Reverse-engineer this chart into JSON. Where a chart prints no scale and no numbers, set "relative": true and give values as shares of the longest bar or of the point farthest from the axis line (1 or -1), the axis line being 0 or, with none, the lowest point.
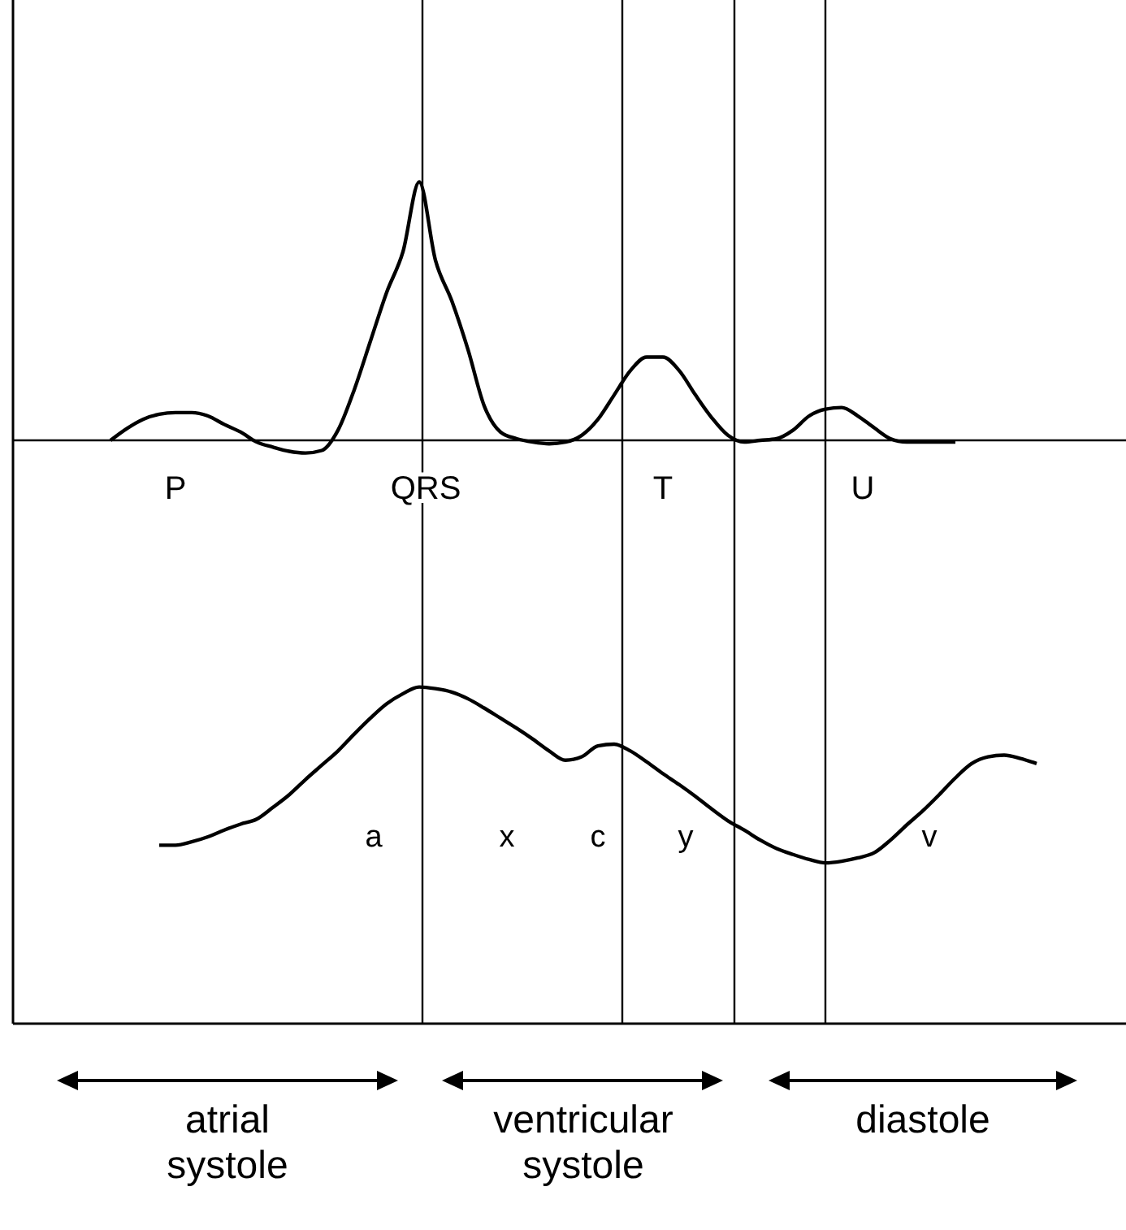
{
  "chart_data": {
    "type": "line",
    "relative": true,
    "marker": "none",
    "line_style": "solid",
    "categories": [
      null,
      null,
      null,
      null,
      null,
      null,
      null,
      null,
      null,
      null,
      null,
      null,
      null,
      null,
      null,
      null,
      null,
      null,
      null,
      null,
      null,
      null,
      null,
      null,
      null,
      null,
      null,
      null,
      null,
      null,
      null,
      null,
      null,
      null,
      null,
      null,
      null,
      null,
      null,
      null,
      null,
      null,
      null,
      null,
      null,
      null,
      null,
      null,
      null,
      null,
      null,
      null,
      null,
      null,
      null,
      null,
      null,
      null,
      null,
      null,
      null,
      null,
      null,
      null,
      null,
      null,
      null,
      null,
      null
    ],
    "series": [
      {
        "color": "#000000",
        "values": [
          null,
          null,
          null,
          null,
          null,
          null,
          0.693,
          0.707,
          0.718,
          0.724,
          0.726,
          0.726,
          0.722,
          0.712,
          0.703,
          0.691,
          0.685,
          0.68,
          0.678,
          0.681,
          0.705,
          0.753,
          0.811,
          0.869,
          0.917,
          1,
          0.907,
          0.859,
          0.801,
          0.734,
          0.703,
          0.695,
          0.691,
          0.689,
          0.691,
          0.699,
          0.718,
          0.747,
          0.776,
          0.792,
          0.792,
          0.776,
          0.747,
          0.72,
          0.699,
          0.691,
          0.693,
          0.695,
          0.705,
          0.722,
          0.73,
          0.732,
          0.722,
          0.708,
          0.695,
          0.691,
          0.691,
          0.691,
          0.691,
          null,
          null,
          null,
          null,
          null,
          null,
          null,
          null,
          null,
          null
        ]
      },
      {
        "color": "#000000",
        "values": [
          null,
          null,
          null,
          null,
          null,
          null,
          null,
          null,
          null,
          0.212,
          0.212,
          0.216,
          0.222,
          0.23,
          0.237,
          0.243,
          0.257,
          0.272,
          0.29,
          0.307,
          0.324,
          0.344,
          0.363,
          0.38,
          0.392,
          0.4,
          0.398,
          0.394,
          0.386,
          0.375,
          0.363,
          0.351,
          0.338,
          0.324,
          0.313,
          0.317,
          0.33,
          0.332,
          0.324,
          0.311,
          0.297,
          0.284,
          0.27,
          0.255,
          0.241,
          0.23,
          0.218,
          0.208,
          0.201,
          0.195,
          0.191,
          0.193,
          0.197,
          0.203,
          0.218,
          0.236,
          0.253,
          0.272,
          0.292,
          0.309,
          0.317,
          0.319,
          0.315,
          0.309,
          null,
          null,
          null,
          null,
          null
        ]
      }
    ],
    "ref_lines": [
      {
        "axis": "y",
        "value": 0.693,
        "color": "#000000"
      }
    ],
    "annotations": [
      "P",
      "QRS",
      "T",
      "U",
      "a",
      "x",
      "c",
      "y",
      "v",
      "atrial systole",
      "ventricular systole",
      "diastole"
    ]
  }
}
